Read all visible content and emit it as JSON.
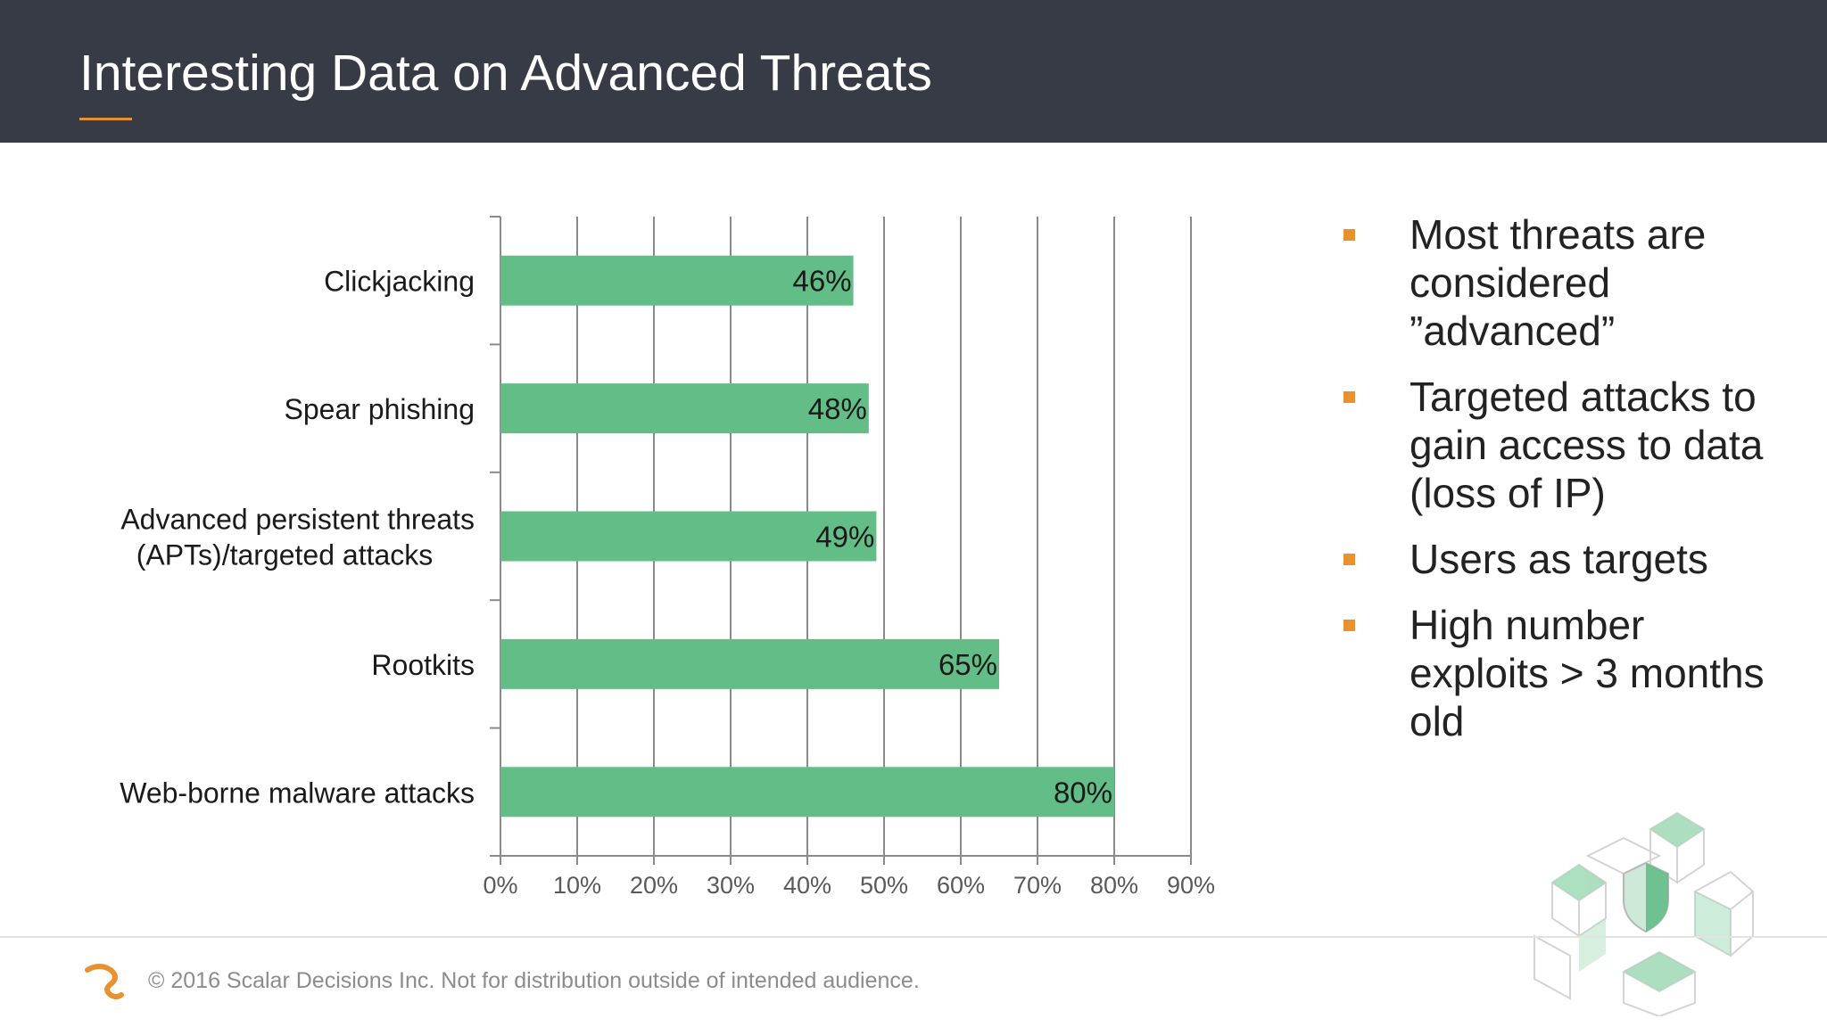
{
  "slide": {
    "title": "Interesting Data on Advanced Threats",
    "footer": "© 2016 Scalar Decisions Inc. Not for distribution outside of intended audience."
  },
  "colors": {
    "header_bg": "#363b46",
    "accent": "#e8912e",
    "bar": "#63bd87",
    "grid": "#8a8a8a"
  },
  "bullets": [
    {
      "text": "Most threats are considered ”advanced”"
    },
    {
      "text": "Targeted attacks to gain access to data (loss of IP)"
    },
    {
      "text": "Users as targets"
    },
    {
      "text": "High number exploits > 3 months old"
    }
  ],
  "chart_data": {
    "type": "bar",
    "orientation": "horizontal",
    "categories": [
      "Clickjacking",
      "Spear phishing",
      "Advanced persistent threats (APTs)/targeted attacks",
      "Rootkits",
      "Web-borne malware attacks"
    ],
    "category_lines": [
      [
        "Clickjacking"
      ],
      [
        "Spear phishing"
      ],
      [
        "Advanced persistent threats",
        "(APTs)/targeted attacks"
      ],
      [
        "Rootkits"
      ],
      [
        "Web-borne malware attacks"
      ]
    ],
    "values": [
      46,
      48,
      49,
      65,
      80
    ],
    "data_labels": [
      "46%",
      "48%",
      "49%",
      "65%",
      "80%"
    ],
    "xlim": [
      0,
      90
    ],
    "xticks": [
      0,
      10,
      20,
      30,
      40,
      50,
      60,
      70,
      80,
      90
    ],
    "xtick_labels": [
      "0%",
      "10%",
      "20%",
      "30%",
      "40%",
      "50%",
      "60%",
      "70%",
      "80%",
      "90%"
    ],
    "grid": true,
    "title": "",
    "xlabel": "",
    "ylabel": ""
  }
}
